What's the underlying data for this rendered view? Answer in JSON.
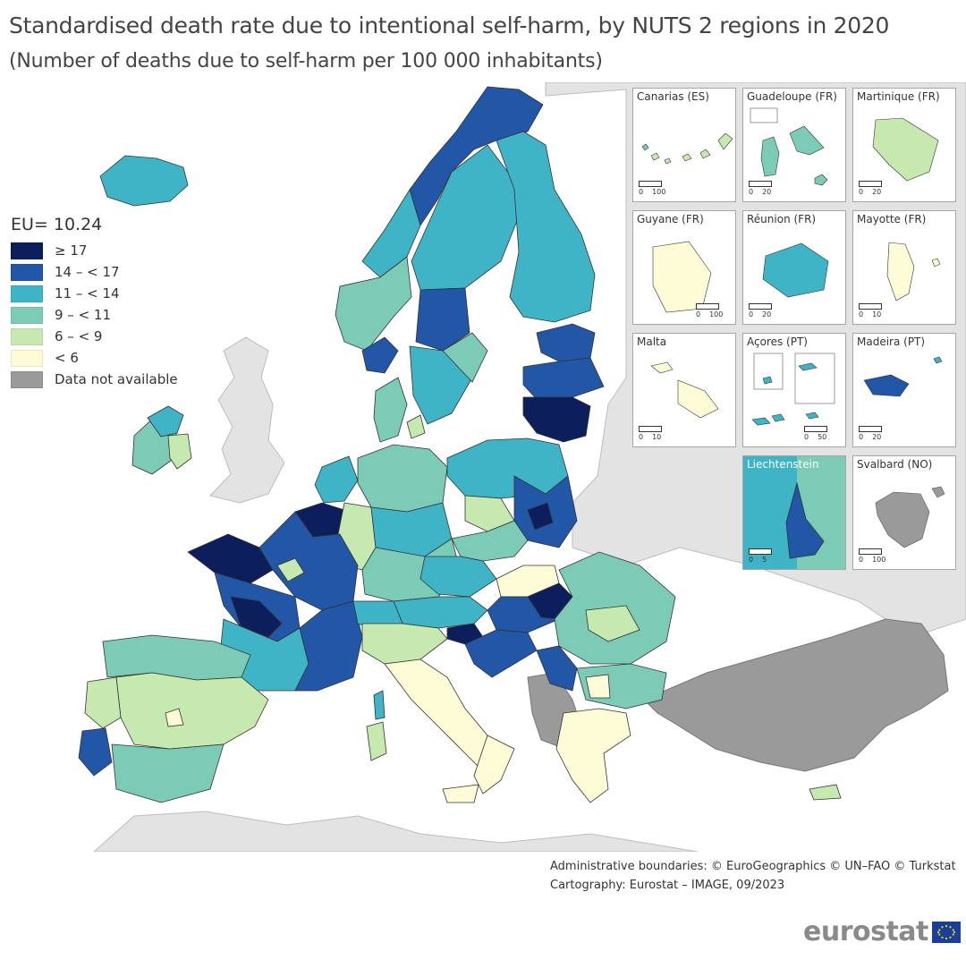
{
  "title": "Standardised death rate due to intentional self-harm, by NUTS 2 regions in 2020",
  "subtitle": "(Number of deaths due to self-harm per 100 000 inhabitants)",
  "legend": {
    "title": "EU= 10.24",
    "classes": [
      {
        "label": "≥ 17",
        "color": "#0c1f5c"
      },
      {
        "label": "14 – < 17",
        "color": "#2256a6"
      },
      {
        "label": "11 – < 14",
        "color": "#3fb4c6"
      },
      {
        "label": "9 – < 11",
        "color": "#7bcbb7"
      },
      {
        "label": "6 – < 9",
        "color": "#c6e9b0"
      },
      {
        "label": "< 6",
        "color": "#fdfcd6"
      },
      {
        "label": "Data not available",
        "color": "#9a9a9a"
      }
    ]
  },
  "colors": {
    "background_land": "#e3e3e3",
    "sea": "#ffffff",
    "border": "#222222"
  },
  "insets": [
    {
      "name": "Canarias (ES)",
      "scale_left": "0",
      "scale_right": "100"
    },
    {
      "name": "Guadeloupe (FR)",
      "scale_left": "0",
      "scale_right": "20"
    },
    {
      "name": "Martinique (FR)",
      "scale_left": "0",
      "scale_right": "20"
    },
    {
      "name": "Guyane (FR)",
      "scale_left": "0",
      "scale_right": "100"
    },
    {
      "name": "Réunion (FR)",
      "scale_left": "0",
      "scale_right": "20"
    },
    {
      "name": "Mayotte (FR)",
      "scale_left": "0",
      "scale_right": "10"
    },
    {
      "name": "Malta",
      "scale_left": "0",
      "scale_right": "10"
    },
    {
      "name": "Açores (PT)",
      "scale_left": "0",
      "scale_right": "50"
    },
    {
      "name": "Madeira (PT)",
      "scale_left": "0",
      "scale_right": "20"
    },
    {
      "name": "Liechtenstein",
      "scale_left": "0",
      "scale_right": "5"
    },
    {
      "name": "Svalbard (NO)",
      "scale_left": "0",
      "scale_right": "100"
    }
  ],
  "footer": {
    "line1": "Administrative boundaries: © EuroGeographics © UN–FAO © Turkstat",
    "line2": "Cartography: Eurostat – IMAGE, 09/2023"
  },
  "logo_text": "eurostat"
}
